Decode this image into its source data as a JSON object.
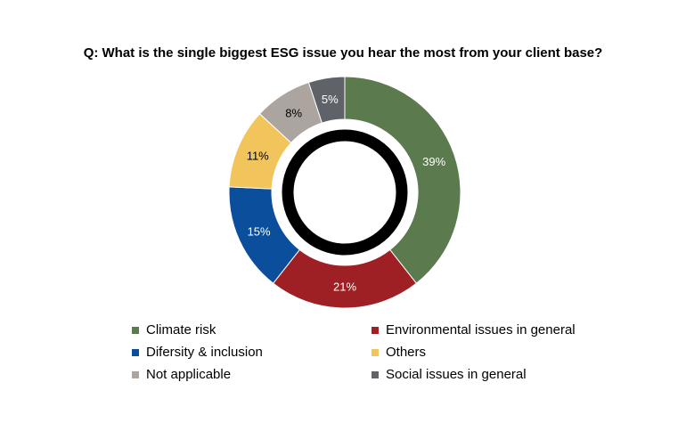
{
  "chart_data": {
    "type": "pie",
    "variant": "donut",
    "title": "Q: What is the single biggest ESG issue you hear the most from your client base?",
    "slices": [
      {
        "name": "Climate risk",
        "value": 39,
        "label": "39%",
        "color": "#5b7a4e",
        "label_color": "#ffffff"
      },
      {
        "name": "Environmental issues in general",
        "value": 21,
        "label": "21%",
        "color": "#9e1f24",
        "label_color": "#ffffff"
      },
      {
        "name": "Difersity & inclusion",
        "value": 15,
        "label": "15%",
        "color": "#0b4f9c",
        "label_color": "#ffffff"
      },
      {
        "name": "Others",
        "value": 11,
        "label": "11%",
        "color": "#f2c55c",
        "label_color": "#000000"
      },
      {
        "name": "Not applicable",
        "value": 8,
        "label": "8%",
        "color": "#aca59f",
        "label_color": "#000000"
      },
      {
        "name": "Social issues in general",
        "value": 5,
        "label": "5%",
        "color": "#5f6369",
        "label_color": "#ffffff"
      }
    ],
    "legend_position": "bottom",
    "center_ring_color": "#000000"
  }
}
